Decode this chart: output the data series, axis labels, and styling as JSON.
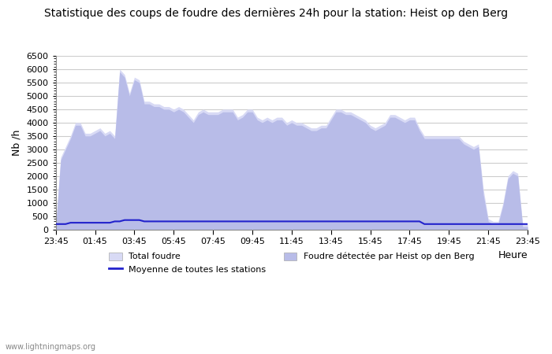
{
  "title": "Statistique des coups de foudre des dernières 24h pour la station: Heist op den Berg",
  "ylabel": "Nb /h",
  "xlabel": "Heure",
  "ylim": [
    0,
    6500
  ],
  "yticks": [
    0,
    500,
    1000,
    1500,
    2000,
    2500,
    3000,
    3500,
    4000,
    4500,
    5000,
    5500,
    6000,
    6500
  ],
  "xtick_labels": [
    "23:45",
    "01:45",
    "03:45",
    "05:45",
    "07:45",
    "09:45",
    "11:45",
    "13:45",
    "15:45",
    "17:45",
    "19:45",
    "21:45",
    "23:45"
  ],
  "color_total": "#d8daf5",
  "color_detected": "#b8bce8",
  "color_line": "#2222cc",
  "watermark": "www.lightningmaps.org",
  "legend_total": "Total foudre",
  "legend_moyenne": "Moyenne de toutes les stations",
  "legend_detected": "Foudre détectée par Heist op den Berg",
  "n_points": 97,
  "total_foudre": [
    200,
    2700,
    3100,
    3500,
    4000,
    4000,
    3600,
    3600,
    3700,
    3800,
    3600,
    3700,
    3500,
    6000,
    5800,
    5100,
    5700,
    5600,
    4800,
    4800,
    4700,
    4700,
    4600,
    4600,
    4500,
    4600,
    4500,
    4300,
    4100,
    4400,
    4500,
    4400,
    4400,
    4400,
    4500,
    4500,
    4500,
    4200,
    4300,
    4500,
    4500,
    4200,
    4100,
    4200,
    4100,
    4200,
    4200,
    4000,
    4100,
    4000,
    4000,
    3900,
    3800,
    3800,
    3900,
    3900,
    4200,
    4500,
    4500,
    4400,
    4400,
    4300,
    4200,
    4100,
    3900,
    3800,
    3900,
    4000,
    4300,
    4300,
    4200,
    4100,
    4200,
    4200,
    3800,
    3500,
    3500,
    3500,
    3500,
    3500,
    3500,
    3500,
    3500,
    3300,
    3200,
    3100,
    3200,
    1500,
    400,
    300,
    300,
    1000,
    2000,
    2200,
    2100,
    200,
    200
  ],
  "detected_foudre": [
    100,
    2600,
    3000,
    3400,
    3900,
    3900,
    3500,
    3500,
    3600,
    3700,
    3500,
    3600,
    3400,
    5900,
    5700,
    5000,
    5600,
    5500,
    4700,
    4700,
    4600,
    4600,
    4500,
    4500,
    4400,
    4500,
    4400,
    4200,
    4000,
    4300,
    4400,
    4300,
    4300,
    4300,
    4400,
    4400,
    4400,
    4100,
    4200,
    4400,
    4400,
    4100,
    4000,
    4100,
    4000,
    4100,
    4100,
    3900,
    4000,
    3900,
    3900,
    3800,
    3700,
    3700,
    3800,
    3800,
    4100,
    4400,
    4400,
    4300,
    4300,
    4200,
    4100,
    4000,
    3800,
    3700,
    3800,
    3900,
    4200,
    4200,
    4100,
    4000,
    4100,
    4100,
    3700,
    3400,
    3400,
    3400,
    3400,
    3400,
    3400,
    3400,
    3400,
    3200,
    3100,
    3000,
    3100,
    1300,
    300,
    200,
    200,
    900,
    1900,
    2100,
    2000,
    100,
    100
  ],
  "moyenne": [
    200,
    200,
    200,
    250,
    250,
    250,
    250,
    250,
    250,
    250,
    250,
    250,
    300,
    300,
    350,
    350,
    350,
    350,
    300,
    300,
    300,
    300,
    300,
    300,
    300,
    300,
    300,
    300,
    300,
    300,
    300,
    300,
    300,
    300,
    300,
    300,
    300,
    300,
    300,
    300,
    300,
    300,
    300,
    300,
    300,
    300,
    300,
    300,
    300,
    300,
    300,
    300,
    300,
    300,
    300,
    300,
    300,
    300,
    300,
    300,
    300,
    300,
    300,
    300,
    300,
    300,
    300,
    300,
    300,
    300,
    300,
    300,
    300,
    300,
    300,
    200,
    200,
    200,
    200,
    200,
    200,
    200,
    200,
    200,
    200,
    200,
    200,
    200,
    200,
    200,
    200,
    200,
    200,
    200,
    200,
    200,
    200
  ]
}
